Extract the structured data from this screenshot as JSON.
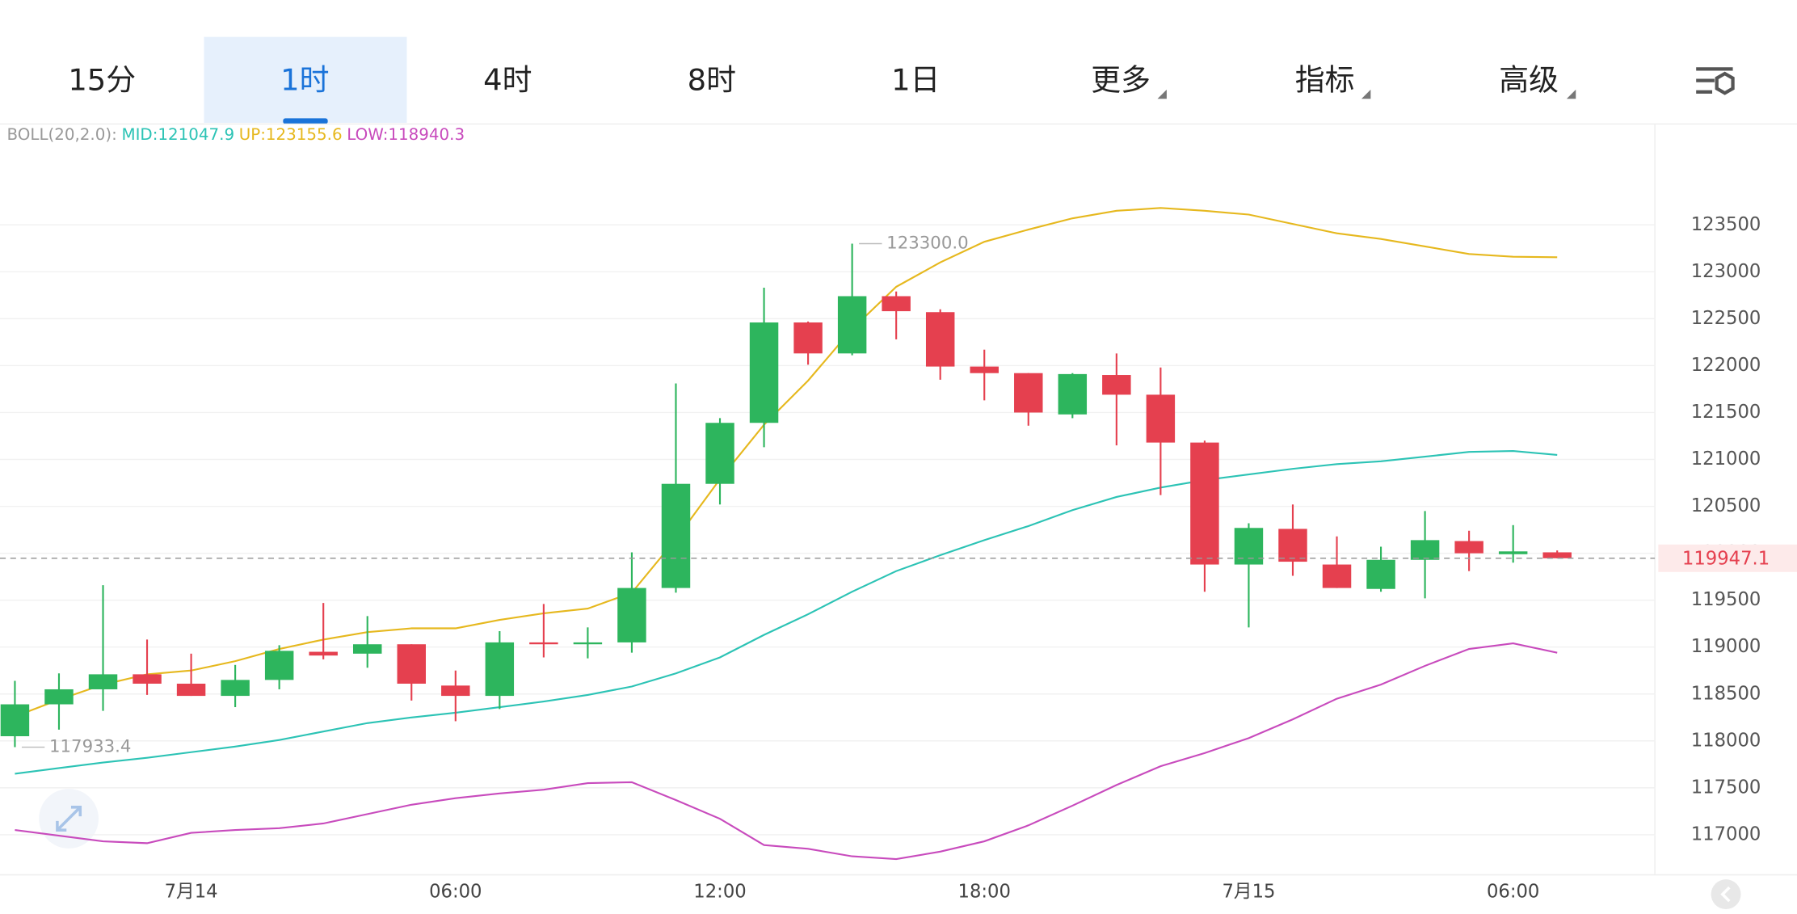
{
  "tabs": [
    "15分",
    "1时",
    "4时",
    "8时",
    "1日",
    "更多",
    "指标",
    "高级"
  ],
  "chart_data": {
    "type": "candlestick",
    "indicator_legend": [
      "BOLL(20,2.0):",
      "MID:121047.9",
      "UP:123155.6",
      "LOW:118940.3"
    ],
    "categories": [
      null,
      null,
      null,
      null,
      "7月14",
      null,
      null,
      null,
      null,
      null,
      "06:00",
      null,
      null,
      null,
      null,
      null,
      "12:00",
      null,
      null,
      null,
      null,
      null,
      "18:00",
      null,
      null,
      null,
      null,
      null,
      "7月15",
      null,
      null,
      null,
      null,
      null,
      "06:00",
      null
    ],
    "open": [
      118050,
      118390,
      118550,
      118710,
      118610,
      118480,
      118650,
      118950,
      118930,
      119030,
      118590,
      118480,
      119050,
      119030,
      119050,
      119630,
      120740,
      121390,
      122460,
      122130,
      122740,
      122570,
      121990,
      121920,
      121480,
      121900,
      121690,
      121180,
      119880,
      120260,
      119880,
      119620,
      119930,
      120130,
      119990,
      120010
    ],
    "close": [
      118390,
      118550,
      118710,
      118610,
      118480,
      118650,
      118960,
      118910,
      119030,
      118610,
      118480,
      119050,
      119030,
      119050,
      119630,
      120740,
      121390,
      122460,
      122130,
      122740,
      122580,
      121990,
      121920,
      121500,
      121910,
      121690,
      121180,
      119880,
      120270,
      119910,
      119630,
      119930,
      120140,
      120000,
      120020,
      119947.1
    ],
    "high": [
      118640,
      118720,
      119660,
      119080,
      118930,
      118810,
      119020,
      119470,
      119330,
      119030,
      118750,
      119170,
      119460,
      119210,
      120010,
      121810,
      121440,
      122830,
      122470,
      123300,
      122790,
      122600,
      122170,
      121920,
      121920,
      122130,
      121980,
      121200,
      120320,
      120520,
      120180,
      120070,
      120450,
      120240,
      120300,
      120030
    ],
    "low": [
      117933.4,
      118120,
      118320,
      118490,
      118480,
      118360,
      118550,
      118870,
      118780,
      118430,
      118210,
      118340,
      118890,
      118880,
      118940,
      119580,
      120520,
      121130,
      122010,
      122110,
      122280,
      121850,
      121630,
      121360,
      121440,
      121150,
      120620,
      119590,
      119210,
      119760,
      119630,
      119590,
      119520,
      119810,
      119900,
      119947.1
    ],
    "up_color": "#2db55d",
    "down_color": "#e5404f",
    "bands": [
      {
        "color": "#2cc3b5",
        "values": [
          117650,
          117710,
          117770,
          117820,
          117880,
          117940,
          118010,
          118100,
          118190,
          118250,
          118300,
          118360,
          118420,
          118490,
          118580,
          118720,
          118890,
          119130,
          119350,
          119590,
          119810,
          119980,
          120140,
          120290,
          120460,
          120600,
          120700,
          120780,
          120840,
          120900,
          120950,
          120980,
          121030,
          121080,
          121090,
          121047.9
        ]
      },
      {
        "color": "#e6b81e",
        "values": [
          118260,
          118440,
          118600,
          118710,
          118750,
          118850,
          118980,
          119080,
          119160,
          119200,
          119200,
          119290,
          119360,
          119410,
          119580,
          120150,
          120790,
          121370,
          121840,
          122390,
          122840,
          123100,
          123320,
          123450,
          123570,
          123650,
          123680,
          123650,
          123610,
          123510,
          123410,
          123350,
          123270,
          123190,
          123160,
          123155.6
        ]
      },
      {
        "color": "#c84bbd",
        "values": [
          117050,
          116990,
          116930,
          116910,
          117020,
          117050,
          117070,
          117120,
          117220,
          117320,
          117390,
          117440,
          117480,
          117550,
          117560,
          117370,
          117170,
          116890,
          116850,
          116770,
          116740,
          116820,
          116930,
          117100,
          117310,
          117530,
          117730,
          117870,
          118030,
          118230,
          118450,
          118600,
          118800,
          118980,
          119040,
          118940.3
        ]
      }
    ],
    "last_price": 119947.1,
    "annotations": [
      {
        "index": 19,
        "value": 123300,
        "label": "123300.0"
      },
      {
        "index": 0,
        "value": 117933.4
      }
    ],
    "ylim": [
      116573,
      124575
    ],
    "yticks": [
      117000,
      117500,
      118000,
      118500,
      119000,
      119500,
      120000,
      120500,
      121000,
      121500,
      122000,
      122500,
      123000,
      123500
    ],
    "grid": true
  }
}
